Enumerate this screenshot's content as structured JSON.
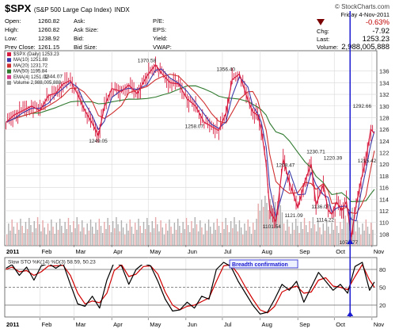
{
  "header": {
    "symbol": "$SPX",
    "name": "(S&P 500 Large Cap Index)",
    "exchange": "INDX",
    "credit": "© StockCharts.com",
    "date_line": "Friday 4-Nov-2011"
  },
  "quote": {
    "open_label": "Open:",
    "open": "1260.82",
    "high_label": "High:",
    "high": "1260.82",
    "low_label": "Low:",
    "low": "1238.92",
    "prev_label": "Prev Close:",
    "prev": "1261.15",
    "ask_label": "Ask:",
    "ask_size_label": "Ask Size:",
    "bid_label": "Bid:",
    "bid_size_label": "Bid Size:",
    "pe_label": "P/E:",
    "eps_label": "EPS:",
    "yield_label": "Yield:",
    "vwap_label": "VWAP:",
    "chg_pct": "-0.63%",
    "chg_label": "Chg:",
    "chg": "-7.92",
    "last_label": "Last:",
    "last": "1253.23",
    "volume_label": "Volume:",
    "volume": "2,988,005,888"
  },
  "colors": {
    "price": "#d81b3f",
    "ma10": "#3a3aa8",
    "ma20": "#d03030",
    "ma50": "#2f7a2f",
    "ema4": "#d63c8a",
    "volume": "#b0b0b0",
    "grid": "#d8d8d8",
    "marker": "#1a1ad0",
    "sto_k": "#000000",
    "sto_d": "#d00000"
  },
  "chart_data": [
    {
      "type": "line",
      "title": "$SPX (Daily) 1253.23",
      "legend": [
        {
          "label": "$SPX (Daily) 1253.23",
          "color": "#d81b3f"
        },
        {
          "label": "MA(10) 1251.88",
          "color": "#3a3aa8"
        },
        {
          "label": "MA(20) 1231.72",
          "color": "#d03030"
        },
        {
          "label": "MA(50) 1195.84",
          "color": "#2f7a2f"
        },
        {
          "label": "EMA(4) 1251.02",
          "color": "#d63c8a"
        },
        {
          "label": "Volume 2,988,005,888",
          "color": "#9a9a9a"
        }
      ],
      "legend_position": "top-left",
      "ylim": [
        1060,
        1395
      ],
      "y_ticks": [
        "136",
        "134",
        "132",
        "130",
        "128",
        "126",
        "124",
        "122",
        "120",
        "118",
        "116",
        "114",
        "112",
        "110",
        "108"
      ],
      "y_tick_values": [
        1360,
        1340,
        1320,
        1300,
        1280,
        1260,
        1240,
        1220,
        1200,
        1180,
        1160,
        1140,
        1120,
        1100,
        1080
      ],
      "x_start_label": "2011",
      "x_months": [
        "Feb",
        "Mar",
        "Apr",
        "May",
        "Jun",
        "Jul",
        "Aug",
        "Sep",
        "Oct",
        "Nov"
      ],
      "x_month_days": [
        31,
        59,
        90,
        120,
        151,
        181,
        212,
        243,
        273,
        304
      ],
      "x_range_days": [
        2,
        308
      ],
      "price_series": {
        "day": [
          3,
          10,
          17,
          24,
          31,
          38,
          44,
          50,
          56,
          62,
          67,
          74,
          79,
          84,
          90,
          98,
          104,
          111,
          119,
          126,
          131,
          138,
          145,
          152,
          159,
          166,
          172,
          178,
          184,
          189,
          195,
          202,
          206,
          210,
          213,
          217,
          220,
          225,
          231,
          236,
          243,
          249,
          254,
          258,
          264,
          268,
          271,
          275,
          279,
          283,
          287,
          291,
          295,
          299,
          303,
          306
        ],
        "close": [
          1272,
          1285,
          1292,
          1300,
          1292,
          1318,
          1322,
          1338,
          1344,
          1320,
          1296,
          1270,
          1249,
          1299,
          1330,
          1325,
          1336,
          1321,
          1352,
          1371,
          1356,
          1340,
          1338,
          1312,
          1300,
          1272,
          1265,
          1258,
          1288,
          1345,
          1355,
          1310,
          1290,
          1284,
          1260,
          1200,
          1120,
          1101,
          1208,
          1170,
          1125,
          1172,
          1200,
          1130,
          1165,
          1121,
          1114,
          1135,
          1120,
          1136,
          1075,
          1130,
          1172,
          1208,
          1260,
          1253
        ]
      },
      "annotations": [
        {
          "text": "1370.58",
          "x": 119,
          "y": 1371
        },
        {
          "text": "1356.40",
          "x": 184,
          "y": 1356
        },
        {
          "text": "1344.07",
          "x": 42,
          "y": 1344
        },
        {
          "text": "1249.05",
          "x": 79,
          "y": 1249
        },
        {
          "text": "1258.07",
          "x": 158,
          "y": 1258
        },
        {
          "text": "1292.66",
          "x": 296,
          "y": 1293
        },
        {
          "text": "1230.71",
          "x": 258,
          "y": 1231
        },
        {
          "text": "1220.39",
          "x": 272,
          "y": 1220
        },
        {
          "text": "1208.47",
          "x": 233,
          "y": 1208
        },
        {
          "text": "1215.42",
          "x": 300,
          "y": 1215
        },
        {
          "text": "1136.07",
          "x": 262,
          "y": 1136
        },
        {
          "text": "1121.09",
          "x": 240,
          "y": 1121
        },
        {
          "text": "1114.22",
          "x": 266,
          "y": 1114
        },
        {
          "text": "1101.54",
          "x": 222,
          "y": 1102
        },
        {
          "text": "1074.77",
          "x": 285,
          "y": 1075
        }
      ]
    },
    {
      "type": "line",
      "title": "Slow STO %K(14) %D(3) 58.59, 50.23",
      "legend": [
        {
          "label": "Slow STO %K(14) %D(3) 58.59, 50.23",
          "color": "#000000"
        }
      ],
      "ylim": [
        0,
        100
      ],
      "y_ticks": [
        "80",
        "50",
        "20"
      ],
      "y_tick_values": [
        80,
        50,
        20
      ],
      "callout": "Breadth confirmation",
      "series": [
        {
          "name": "%K",
          "day": [
            3,
            8,
            14,
            20,
            26,
            32,
            38,
            44,
            50,
            56,
            62,
            68,
            74,
            80,
            86,
            92,
            98,
            104,
            110,
            116,
            122,
            128,
            134,
            140,
            146,
            152,
            158,
            164,
            170,
            176,
            182,
            188,
            194,
            200,
            206,
            212,
            218,
            224,
            230,
            236,
            242,
            248,
            254,
            260,
            266,
            272,
            278,
            284,
            290,
            296,
            302,
            306
          ],
          "values": [
            82,
            88,
            70,
            84,
            62,
            86,
            90,
            82,
            90,
            55,
            22,
            18,
            35,
            15,
            62,
            92,
            86,
            55,
            80,
            90,
            86,
            60,
            30,
            10,
            12,
            25,
            15,
            35,
            30,
            80,
            92,
            85,
            60,
            40,
            20,
            5,
            8,
            30,
            55,
            45,
            60,
            25,
            50,
            75,
            60,
            45,
            55,
            40,
            85,
            92,
            45,
            59
          ]
        },
        {
          "name": "%D",
          "day": [
            3,
            8,
            14,
            20,
            26,
            32,
            38,
            44,
            50,
            56,
            62,
            68,
            74,
            80,
            86,
            92,
            98,
            104,
            110,
            116,
            122,
            128,
            134,
            140,
            146,
            152,
            158,
            164,
            170,
            176,
            182,
            188,
            194,
            200,
            206,
            212,
            218,
            224,
            230,
            236,
            242,
            248,
            254,
            260,
            266,
            272,
            278,
            284,
            290,
            296,
            302,
            306
          ],
          "values": [
            80,
            84,
            76,
            78,
            70,
            76,
            86,
            86,
            87,
            70,
            40,
            22,
            27,
            24,
            40,
            78,
            88,
            68,
            72,
            85,
            86,
            72,
            42,
            20,
            12,
            18,
            20,
            26,
            32,
            60,
            86,
            88,
            72,
            50,
            30,
            12,
            7,
            18,
            42,
            48,
            52,
            40,
            42,
            62,
            66,
            52,
            50,
            46,
            68,
            88,
            62,
            50
          ]
        }
      ]
    }
  ]
}
